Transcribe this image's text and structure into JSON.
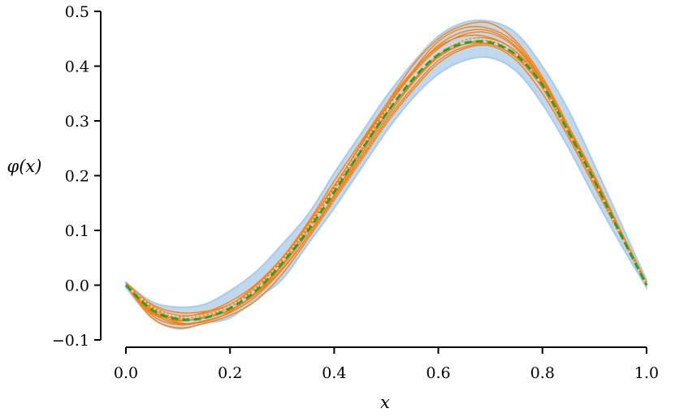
{
  "chart_data": {
    "type": "line",
    "xlabel": "x",
    "ylabel": "φ(x)",
    "xlim": [
      0.0,
      1.0
    ],
    "ylim": [
      -0.1,
      0.5
    ],
    "grid": false,
    "xticks": [
      0.0,
      0.2,
      0.4,
      0.6,
      0.8,
      1.0
    ],
    "xtick_labels": [
      "0.0",
      "0.2",
      "0.4",
      "0.6",
      "0.8",
      "1.0"
    ],
    "yticks": [
      -0.1,
      0.0,
      0.1,
      0.2,
      0.3,
      0.4,
      0.5
    ],
    "ytick_labels": [
      "−0.1",
      "0.0",
      "0.1",
      "0.2",
      "0.3",
      "0.4",
      "0.5"
    ],
    "colors": {
      "band": "#a9cbe8",
      "band_edge": "#7fb2de",
      "samples": "#ff7f0e",
      "mean": "#2ca02c",
      "reference": "#d9d9d9"
    },
    "x": [
      0.0,
      0.05,
      0.1,
      0.15,
      0.2,
      0.25,
      0.3,
      0.35,
      0.4,
      0.45,
      0.5,
      0.55,
      0.6,
      0.65,
      0.7,
      0.75,
      0.8,
      0.85,
      0.9,
      0.95,
      1.0
    ],
    "band": {
      "upper": [
        0.005,
        -0.03,
        -0.04,
        -0.035,
        -0.01,
        0.025,
        0.075,
        0.13,
        0.205,
        0.275,
        0.345,
        0.405,
        0.455,
        0.48,
        0.482,
        0.46,
        0.4,
        0.32,
        0.22,
        0.115,
        0.01
      ],
      "lower": [
        -0.005,
        -0.06,
        -0.08,
        -0.07,
        -0.06,
        -0.025,
        0.01,
        0.075,
        0.14,
        0.21,
        0.28,
        0.34,
        0.385,
        0.41,
        0.415,
        0.39,
        0.33,
        0.25,
        0.16,
        0.075,
        -0.005
      ]
    },
    "series": [
      {
        "role": "mean",
        "values": [
          0.0,
          -0.045,
          -0.062,
          -0.06,
          -0.042,
          -0.01,
          0.04,
          0.1,
          0.17,
          0.243,
          0.313,
          0.375,
          0.421,
          0.442,
          0.443,
          0.42,
          0.365,
          0.28,
          0.19,
          0.093,
          0.0
        ]
      },
      {
        "role": "reference",
        "values": [
          0.0,
          -0.04,
          -0.058,
          -0.055,
          -0.038,
          -0.006,
          0.045,
          0.105,
          0.175,
          0.248,
          0.318,
          0.38,
          0.426,
          0.447,
          0.446,
          0.421,
          0.364,
          0.278,
          0.188,
          0.092,
          0.0
        ]
      },
      {
        "role": "sample",
        "values": [
          0.0,
          -0.05,
          -0.07,
          -0.065,
          -0.05,
          -0.02,
          0.03,
          0.09,
          0.165,
          0.245,
          0.32,
          0.39,
          0.445,
          0.47,
          0.468,
          0.44,
          0.375,
          0.29,
          0.2,
          0.1,
          0.0
        ]
      },
      {
        "role": "sample",
        "values": [
          0.005,
          -0.035,
          -0.05,
          -0.048,
          -0.035,
          0.0,
          0.05,
          0.115,
          0.19,
          0.26,
          0.33,
          0.39,
          0.435,
          0.455,
          0.452,
          0.425,
          0.36,
          0.275,
          0.185,
          0.09,
          0.005
        ]
      },
      {
        "role": "sample",
        "values": [
          0.0,
          -0.06,
          -0.078,
          -0.07,
          -0.055,
          -0.028,
          0.02,
          0.085,
          0.155,
          0.225,
          0.295,
          0.355,
          0.405,
          0.432,
          0.437,
          0.41,
          0.35,
          0.27,
          0.18,
          0.09,
          0.0
        ]
      },
      {
        "role": "sample",
        "values": [
          0.0,
          -0.04,
          -0.06,
          -0.055,
          -0.04,
          -0.005,
          0.045,
          0.105,
          0.18,
          0.255,
          0.33,
          0.4,
          0.45,
          0.475,
          0.478,
          0.445,
          0.38,
          0.29,
          0.195,
          0.1,
          0.005
        ]
      },
      {
        "role": "sample",
        "values": [
          0.0,
          -0.048,
          -0.065,
          -0.058,
          -0.045,
          -0.015,
          0.035,
          0.095,
          0.16,
          0.23,
          0.3,
          0.36,
          0.41,
          0.435,
          0.44,
          0.415,
          0.36,
          0.28,
          0.19,
          0.095,
          0.0
        ]
      },
      {
        "role": "sample",
        "values": [
          0.005,
          -0.045,
          -0.068,
          -0.067,
          -0.048,
          -0.012,
          0.038,
          0.102,
          0.175,
          0.245,
          0.312,
          0.37,
          0.418,
          0.44,
          0.44,
          0.416,
          0.362,
          0.283,
          0.193,
          0.094,
          0.003
        ]
      },
      {
        "role": "sample",
        "values": [
          0.0,
          -0.052,
          -0.058,
          -0.05,
          -0.03,
          0.002,
          0.05,
          0.112,
          0.182,
          0.252,
          0.322,
          0.385,
          0.432,
          0.458,
          0.46,
          0.432,
          0.37,
          0.283,
          0.19,
          0.094,
          0.002
        ]
      },
      {
        "role": "sample",
        "values": [
          0.0,
          -0.042,
          -0.063,
          -0.06,
          -0.046,
          -0.016,
          0.03,
          0.09,
          0.16,
          0.235,
          0.305,
          0.368,
          0.416,
          0.44,
          0.446,
          0.42,
          0.368,
          0.285,
          0.195,
          0.096,
          0.0
        ]
      },
      {
        "role": "sample",
        "values": [
          0.0,
          -0.055,
          -0.072,
          -0.066,
          -0.05,
          -0.02,
          0.028,
          0.09,
          0.164,
          0.24,
          0.31,
          0.372,
          0.42,
          0.447,
          0.45,
          0.426,
          0.367,
          0.282,
          0.19,
          0.093,
          0.0
        ]
      },
      {
        "role": "sample",
        "values": [
          0.0,
          -0.038,
          -0.055,
          -0.052,
          -0.036,
          -0.004,
          0.048,
          0.108,
          0.178,
          0.252,
          0.325,
          0.388,
          0.438,
          0.463,
          0.464,
          0.435,
          0.373,
          0.285,
          0.192,
          0.095,
          0.002
        ]
      }
    ]
  }
}
